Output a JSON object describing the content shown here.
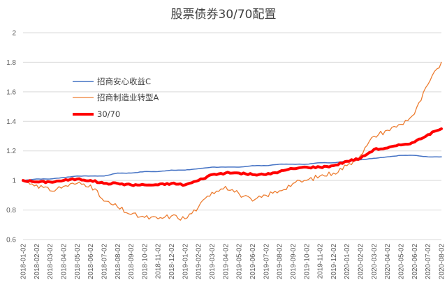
{
  "chart_data": {
    "type": "line",
    "title": "股票债券30/70配置",
    "xlabel": "",
    "ylabel": "",
    "ylim": [
      0.6,
      2.0
    ],
    "yticks": [
      "0.6",
      "0.8",
      "1",
      "1.2",
      "1.4",
      "1.6",
      "1.8",
      "2"
    ],
    "grid": true,
    "legend_position": "left",
    "x_labels": [
      "2018-01-02",
      "2018-02-02",
      "2018-03-02",
      "2018-04-02",
      "2018-05-02",
      "2018-06-02",
      "2018-07-02",
      "2018-08-02",
      "2018-09-02",
      "2018-10-02",
      "2018-11-02",
      "2018-12-02",
      "2019-01-02",
      "2019-02-02",
      "2019-03-02",
      "2019-04-02",
      "2019-05-02",
      "2019-06-02",
      "2019-07-02",
      "2019-08-02",
      "2019-09-02",
      "2019-10-02",
      "2019-11-02",
      "2019-12-02",
      "2020-01-02",
      "2020-02-02",
      "2020-03-02",
      "2020-04-02",
      "2020-05-02",
      "2020-06-02",
      "2020-07-02",
      "2020-08-02"
    ],
    "series": [
      {
        "name": "招商安心收益C",
        "color": "#4472c4",
        "width": 1.5,
        "values": [
          1.0,
          1.01,
          1.01,
          1.02,
          1.03,
          1.03,
          1.03,
          1.05,
          1.05,
          1.06,
          1.06,
          1.07,
          1.07,
          1.08,
          1.09,
          1.09,
          1.09,
          1.1,
          1.1,
          1.11,
          1.11,
          1.11,
          1.12,
          1.12,
          1.13,
          1.14,
          1.15,
          1.16,
          1.17,
          1.17,
          1.16,
          1.16
        ]
      },
      {
        "name": "招商制造业转型A",
        "color": "#ed7d31",
        "width": 1.3,
        "values": [
          1.0,
          0.97,
          0.93,
          0.96,
          0.98,
          0.97,
          0.86,
          0.82,
          0.77,
          0.75,
          0.74,
          0.76,
          0.74,
          0.82,
          0.92,
          0.96,
          0.91,
          0.86,
          0.9,
          0.93,
          0.98,
          1.0,
          1.03,
          1.05,
          1.1,
          1.17,
          1.3,
          1.34,
          1.38,
          1.45,
          1.65,
          1.8
        ]
      },
      {
        "name": "30/70",
        "color": "#ff0000",
        "width": 4,
        "values": [
          1.0,
          0.99,
          0.99,
          1.0,
          1.01,
          1.0,
          0.98,
          0.98,
          0.97,
          0.97,
          0.97,
          0.98,
          0.97,
          1.0,
          1.04,
          1.05,
          1.05,
          1.04,
          1.04,
          1.06,
          1.08,
          1.09,
          1.09,
          1.1,
          1.13,
          1.15,
          1.21,
          1.22,
          1.24,
          1.26,
          1.31,
          1.35
        ]
      }
    ]
  }
}
